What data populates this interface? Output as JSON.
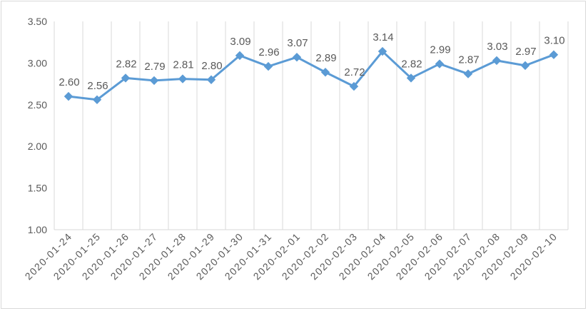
{
  "chart_data": {
    "type": "line",
    "title": "",
    "xlabel": "",
    "ylabel": "",
    "ylim": [
      1.0,
      3.5
    ],
    "yticks": [
      "1.00",
      "1.50",
      "2.00",
      "2.50",
      "3.00",
      "3.50"
    ],
    "grid": "vertical",
    "legend": "none",
    "x": [
      "2020-01-24",
      "2020-01-25",
      "2020-01-26",
      "2020-01-27",
      "2020-01-28",
      "2020-01-29",
      "2020-01-30",
      "2020-01-31",
      "2020-02-01",
      "2020-02-02",
      "2020-02-03",
      "2020-02-04",
      "2020-02-05",
      "2020-02-06",
      "2020-02-07",
      "2020-02-08",
      "2020-02-09",
      "2020-02-10"
    ],
    "values": [
      2.6,
      2.56,
      2.82,
      2.79,
      2.81,
      2.8,
      3.09,
      2.96,
      3.07,
      2.89,
      2.72,
      3.14,
      2.82,
      2.99,
      2.87,
      3.03,
      2.97,
      3.1
    ],
    "value_labels": [
      "2.60",
      "2.56",
      "2.82",
      "2.79",
      "2.81",
      "2.80",
      "3.09",
      "2.96",
      "3.07",
      "2.89",
      "2.72",
      "3.14",
      "2.82",
      "2.99",
      "2.87",
      "3.03",
      "2.97",
      "3.10"
    ],
    "colors": {
      "line": "#5b9bd5",
      "grid": "#d9d9d9",
      "text": "#595959"
    }
  }
}
